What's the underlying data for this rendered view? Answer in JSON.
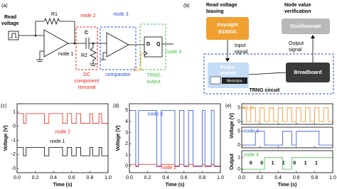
{
  "panel_a": {
    "label": "(a)",
    "read_voltage": [
      "Read",
      "voltage"
    ],
    "r1": "R1",
    "c": "C",
    "r2": "R2",
    "node1": "node 1",
    "node2": "node 2",
    "node3": "node 3",
    "node4": "node 4",
    "d": "D",
    "q": "Q",
    "clk": "CLK",
    "dc_removal": [
      "DC",
      "component",
      "removal"
    ],
    "comparator": "comparator",
    "trng_output": [
      "TRNG",
      "output"
    ]
  },
  "panel_b": {
    "label": "(b)",
    "read_biasing": [
      "Read voltage",
      "biasing"
    ],
    "verification": [
      "Node value",
      "verification"
    ],
    "keysight": [
      "Keysight",
      "B1500A"
    ],
    "input_signal": [
      "Input",
      "signal"
    ],
    "oscilloscope": "Oscilloscope",
    "output_signal": [
      "Output",
      "signal"
    ],
    "probe_station": [
      "Probe-",
      "station"
    ],
    "memristor": "Memristor",
    "breadboard": "Breadboard",
    "trng_circuit": "TRNG circuit"
  },
  "chart_data": [
    {
      "type": "line",
      "panel": "(c)",
      "xlabel": "Time (s)",
      "ylabel": "Voltage (V)",
      "xlim": [
        0,
        1
      ],
      "xticks": [
        {
          "value": 0,
          "label": "0.0"
        },
        0.2,
        0.4,
        0.6,
        0.8,
        {
          "value": 1,
          "label": "1.0"
        }
      ],
      "ylim": [
        -3.3,
        1.6
      ],
      "yticks": [
        1,
        0,
        -1,
        -2,
        -3
      ],
      "series": [
        {
          "name": "node 2",
          "color": "#e8231b",
          "x": [
            0,
            0.07,
            0.07,
            0.1,
            0.1,
            0.3,
            0.3,
            0.35,
            0.35,
            0.5,
            0.5,
            0.55,
            0.55,
            0.6,
            0.6,
            0.65,
            0.65,
            0.7,
            0.7,
            0.8,
            0.8,
            0.83,
            0.83,
            0.9,
            0.9,
            0.93,
            0.93,
            1
          ],
          "values": [
            0.9,
            0.9,
            0.2,
            0.2,
            0.9,
            0.9,
            0.2,
            0.2,
            0.9,
            0.9,
            0.2,
            0.2,
            0.9,
            0.9,
            0.2,
            0.2,
            0.9,
            0.9,
            0.2,
            0.2,
            0.9,
            0.9,
            0.2,
            0.2,
            0.9,
            0.9,
            0.2,
            0.2
          ]
        },
        {
          "name": "node 1",
          "color": "#000000",
          "x": [
            0,
            0.07,
            0.07,
            0.1,
            0.1,
            0.3,
            0.3,
            0.35,
            0.35,
            0.5,
            0.5,
            0.55,
            0.55,
            0.6,
            0.6,
            0.65,
            0.65,
            0.7,
            0.7,
            0.8,
            0.8,
            0.83,
            0.83,
            0.9,
            0.9,
            0.93,
            0.93,
            1
          ],
          "values": [
            -1.5,
            -1.5,
            -2.1,
            -2.1,
            -1.5,
            -1.5,
            -2.1,
            -2.1,
            -1.5,
            -1.5,
            -2.1,
            -2.1,
            -1.5,
            -1.5,
            -2.1,
            -2.1,
            -1.5,
            -1.5,
            -2.1,
            -2.1,
            -1.5,
            -1.5,
            -2.1,
            -2.1,
            -1.5,
            -1.5,
            -2.1,
            -2.1
          ]
        }
      ]
    },
    {
      "type": "line",
      "panel": "(d)",
      "xlabel": "Time (s)",
      "ylabel": "Voltage (V)",
      "xlim": [
        0,
        1
      ],
      "xticks": [
        {
          "value": 0,
          "label": "0.0"
        },
        0.2,
        0.4,
        0.6,
        0.8,
        {
          "value": 1,
          "label": "1.0"
        }
      ],
      "ylim": [
        -0.6,
        5.6
      ],
      "yticks": [
        0,
        1,
        2,
        3,
        4,
        5
      ],
      "series": [
        {
          "name": "node 3",
          "color": "#2b50d8",
          "x": [
            0,
            0.07,
            0.07,
            0.1,
            0.1,
            0.3,
            0.3,
            0.35,
            0.35,
            0.5,
            0.5,
            0.55,
            0.55,
            0.6,
            0.6,
            0.65,
            0.65,
            0.7,
            0.7,
            0.8,
            0.8,
            0.83,
            0.83,
            0.9,
            0.9,
            0.93,
            0.93,
            1
          ],
          "values": [
            5,
            5,
            0,
            0,
            5,
            5,
            0,
            0,
            5,
            5,
            0,
            0,
            5,
            5,
            0,
            0,
            5,
            5,
            0,
            0,
            5,
            5,
            0,
            0,
            5,
            5,
            0,
            0
          ]
        },
        {
          "name": "node 2",
          "color": "#e8231b",
          "x": [
            0,
            0.07,
            0.07,
            0.1,
            0.1,
            0.3,
            0.3,
            0.35,
            0.35,
            0.5,
            0.5,
            0.55,
            0.55,
            0.6,
            0.6,
            0.65,
            0.65,
            0.7,
            0.7,
            0.8,
            0.8,
            0.83,
            0.83,
            0.9,
            0.9,
            0.93,
            0.93,
            1
          ],
          "values": [
            0.15,
            0.15,
            -0.05,
            -0.05,
            0.15,
            0.15,
            -0.05,
            -0.05,
            0.15,
            0.15,
            -0.05,
            -0.05,
            0.15,
            0.15,
            -0.05,
            -0.05,
            0.15,
            0.15,
            -0.05,
            -0.05,
            0.15,
            0.15,
            -0.05,
            -0.05,
            0.15,
            0.15,
            -0.05,
            -0.05
          ]
        }
      ]
    },
    {
      "type": "stacked-line",
      "panel": "(e)",
      "xlabel": "Time (s)",
      "ylabel": "Voltage (V)",
      "xlim": [
        0,
        1
      ],
      "xticks": [
        {
          "value": 0,
          "label": "0.0"
        },
        0.2,
        0.4,
        0.6,
        0.8,
        {
          "value": 1,
          "label": "1.0"
        }
      ],
      "subplots": [
        {
          "ylim": [
            -1,
            6.5
          ],
          "yticks": [
            0,
            5
          ],
          "series": [
            {
              "name": "CLK",
              "color": "#f08a20",
              "x": [
                0,
                0.05,
                0.05,
                0.1,
                0.1,
                0.15,
                0.15,
                0.2,
                0.2,
                0.25,
                0.25,
                0.3,
                0.3,
                0.35,
                0.35,
                0.4,
                0.4,
                0.45,
                0.45,
                0.5,
                0.5,
                0.55,
                0.55,
                0.6,
                0.6,
                0.65,
                0.65,
                0.7,
                0.7,
                0.75,
                0.75,
                0.8,
                0.8,
                0.85,
                0.85,
                0.9,
                0.9,
                0.95,
                0.95,
                1
              ],
              "values": [
                5,
                5,
                0,
                0,
                5,
                5,
                0,
                0,
                5,
                5,
                0,
                0,
                5,
                5,
                0,
                0,
                5,
                5,
                0,
                0,
                5,
                5,
                0,
                0,
                5,
                5,
                0,
                0,
                5,
                5,
                0,
                0,
                5,
                5,
                0,
                0,
                5,
                5,
                0,
                0
              ]
            }
          ]
        },
        {
          "ylim": [
            -1,
            6.5
          ],
          "yticks": [
            0,
            5
          ],
          "series": [
            {
              "name": "node 3",
              "color": "#2b50d8",
              "x": [
                0,
                0.15,
                0.15,
                0.25,
                0.25,
                0.45,
                0.45,
                0.55,
                0.55,
                0.6,
                0.6,
                0.85,
                0.85,
                1
              ],
              "values": [
                0,
                0,
                5,
                5,
                0,
                0,
                5,
                5,
                0,
                0,
                5,
                5,
                0,
                0
              ]
            }
          ]
        },
        {
          "ylabel": "Output",
          "ylim": [
            -0.3,
            1.6
          ],
          "yticks": [
            0,
            1
          ],
          "series": [
            {
              "name": "node 4",
              "color": "#44c040",
              "x": [
                0,
                0.25,
                0.25,
                0.45,
                0.45,
                0.55,
                0.55,
                1
              ],
              "values": [
                0,
                0,
                1,
                1,
                0,
                0,
                1,
                1
              ]
            }
          ],
          "bit_labels": [
            "0",
            "0",
            "1",
            "1",
            "0",
            "1",
            "1"
          ]
        }
      ]
    }
  ]
}
